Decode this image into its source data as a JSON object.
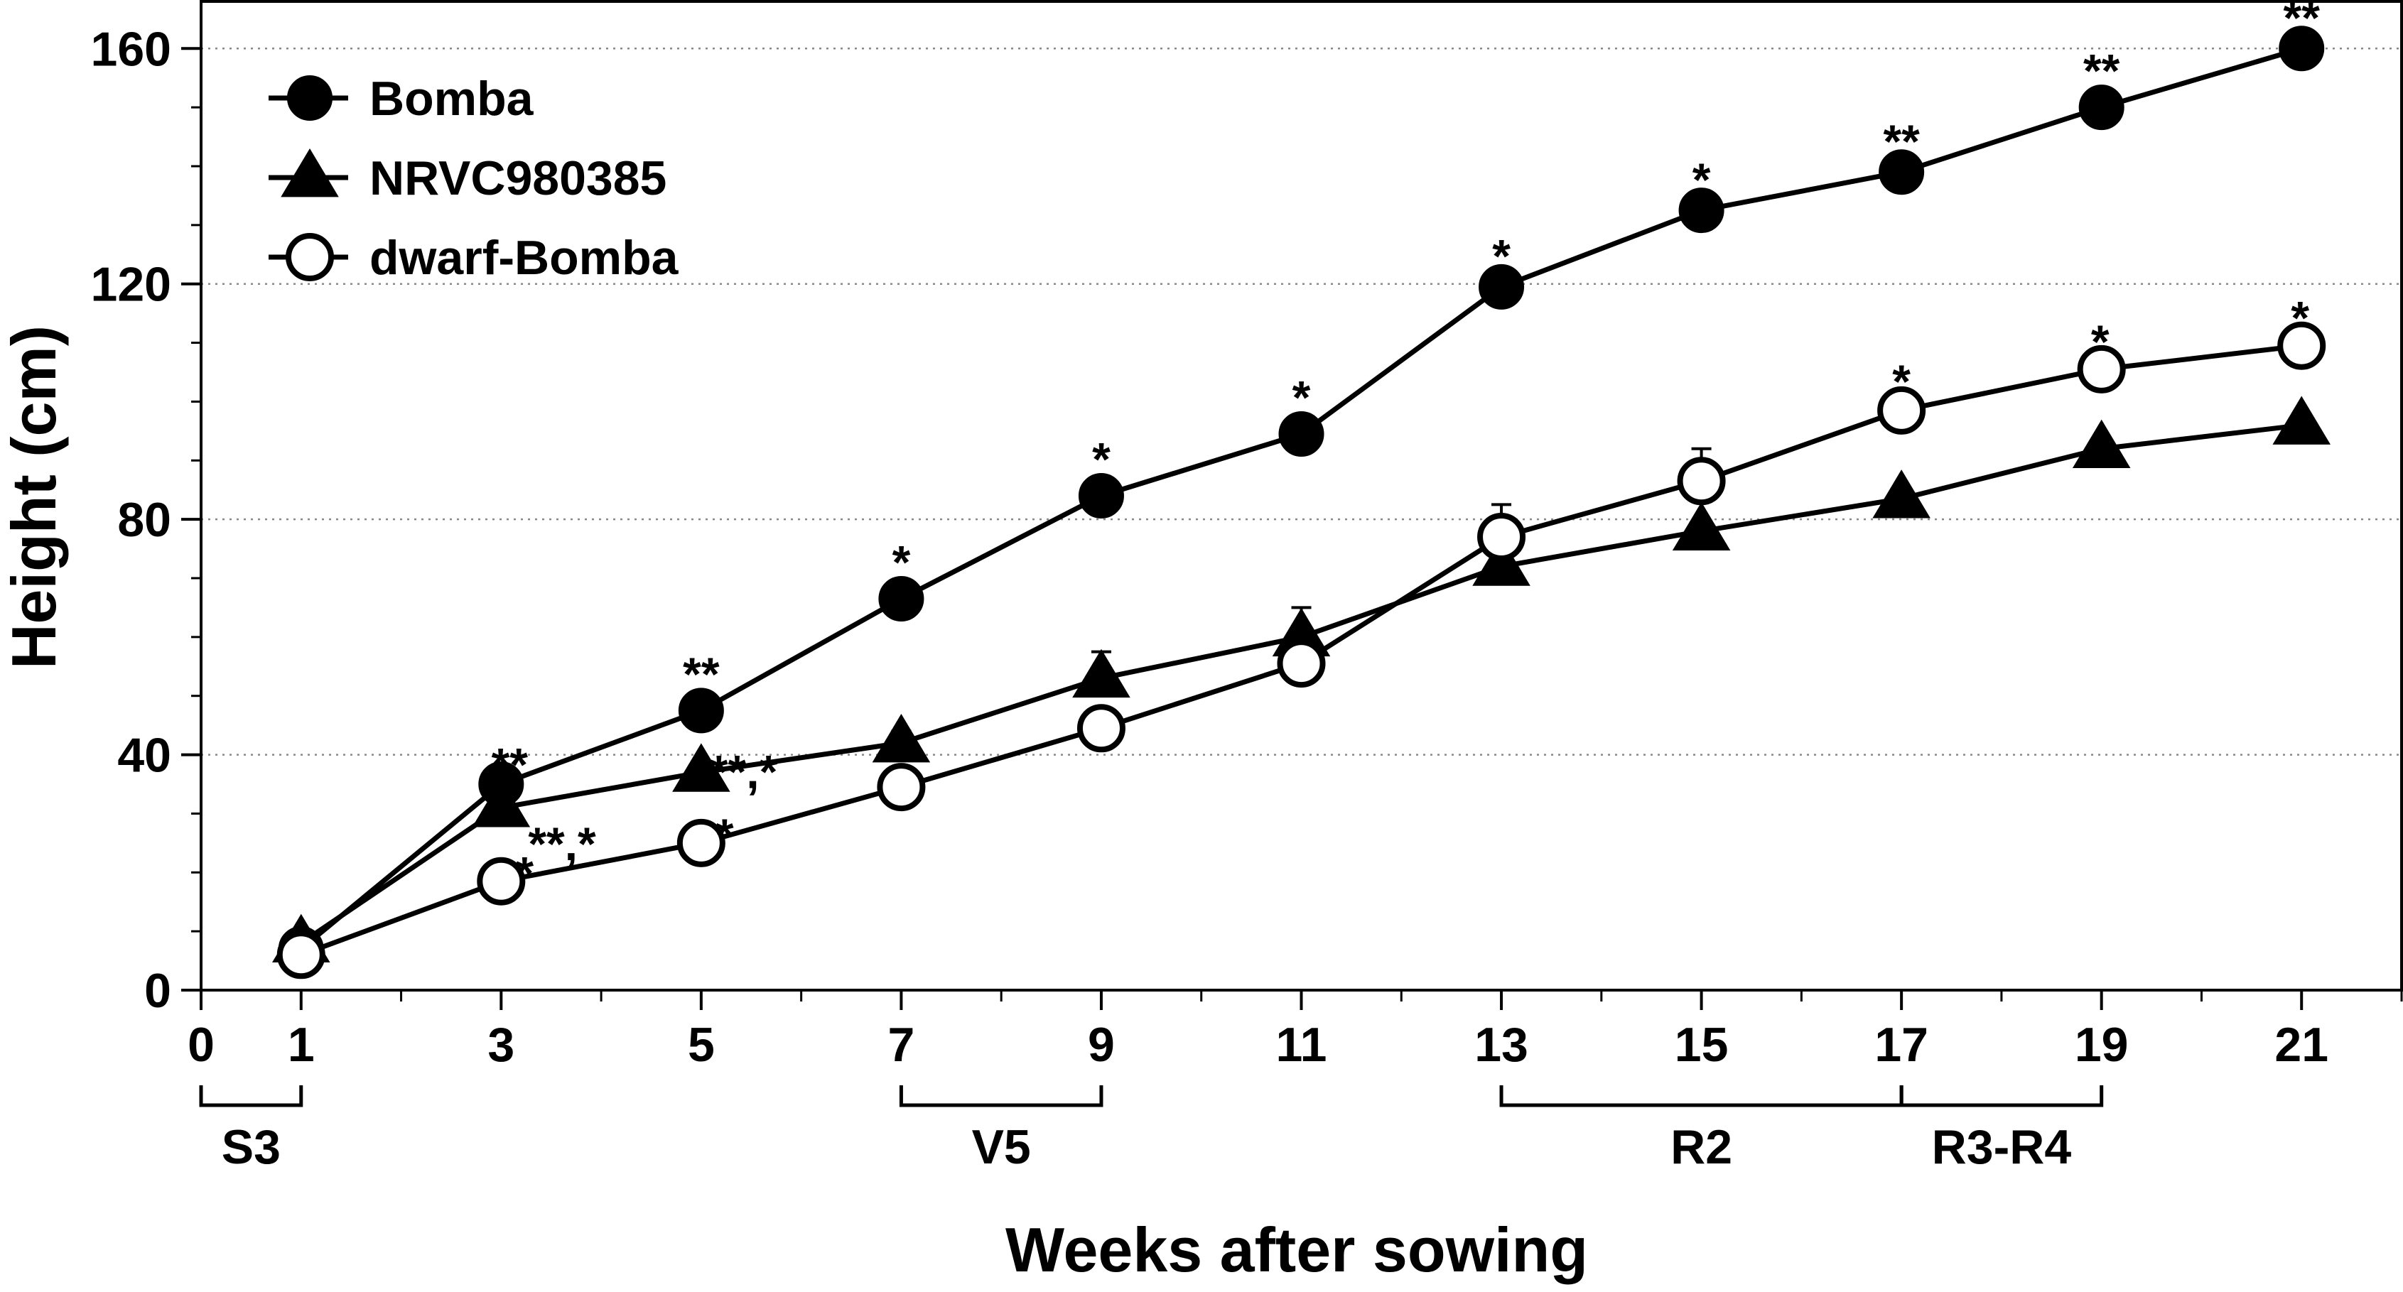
{
  "chart_data": {
    "type": "line",
    "title": "",
    "xlabel": "Weeks after sowing",
    "ylabel": "Height (cm)",
    "xlim": [
      0,
      22
    ],
    "ylim": [
      0,
      168
    ],
    "x_ticks": [
      0,
      1,
      3,
      5,
      7,
      9,
      11,
      13,
      15,
      17,
      19,
      21
    ],
    "x_ticks_minor": [
      2,
      4,
      6,
      8,
      10,
      12,
      14,
      16,
      18,
      20,
      22
    ],
    "y_ticks": [
      0,
      40,
      80,
      120,
      160
    ],
    "y_ticks_minor": [
      10,
      20,
      30,
      50,
      60,
      70,
      90,
      100,
      110,
      130,
      140,
      150,
      160
    ],
    "grid": "horizontal dotted",
    "legend_position": "top-left",
    "series": [
      {
        "name": "Bomba",
        "marker": "filled-circle",
        "x": [
          1,
          3,
          5,
          7,
          9,
          11,
          13,
          15,
          17,
          19,
          21
        ],
        "values": [
          7,
          35,
          47.5,
          66.5,
          84,
          94.5,
          119.5,
          132.5,
          139,
          150,
          160
        ],
        "error": [
          0.5,
          2.5,
          2,
          2,
          2,
          2,
          1,
          1,
          1,
          2,
          1
        ],
        "significance": [
          "",
          "**",
          "**",
          "*",
          "*",
          "*",
          "*",
          "*",
          "**",
          "**",
          "**"
        ]
      },
      {
        "name": "NRVC980385",
        "marker": "filled-triangle",
        "x": [
          1,
          3,
          5,
          7,
          9,
          11,
          13,
          15,
          17,
          19,
          21
        ],
        "values": [
          8,
          31,
          37,
          42,
          53,
          60,
          72,
          78,
          83.5,
          92,
          96
        ],
        "error": [
          0.5,
          1,
          1.5,
          2,
          4.5,
          5,
          1,
          1,
          1,
          1,
          1
        ],
        "significance": [
          "",
          "**,*",
          "**,*",
          "",
          "",
          "",
          "",
          "",
          "",
          "",
          ""
        ]
      },
      {
        "name": "dwarf-Bomba",
        "marker": "open-circle",
        "x": [
          1,
          3,
          5,
          7,
          9,
          11,
          13,
          15,
          17,
          19,
          21
        ],
        "values": [
          6,
          18.5,
          25,
          34.5,
          44.5,
          55.5,
          77,
          86.5,
          98.5,
          105.5,
          109.5
        ],
        "error": [
          0.5,
          0.8,
          0.8,
          1,
          2,
          2,
          5.5,
          5.5,
          1,
          1,
          1
        ],
        "significance": [
          "",
          "*",
          "*",
          "",
          "",
          "",
          "",
          "",
          "*",
          "*",
          "*"
        ]
      }
    ],
    "stage_brackets": [
      {
        "label": "S3",
        "from": 0,
        "to": 1
      },
      {
        "label": "V5",
        "from": 7,
        "to": 9
      },
      {
        "label": "R2",
        "from": 13,
        "to": 17
      },
      {
        "label": "R3-R4",
        "from": 17,
        "to": 19
      }
    ]
  }
}
